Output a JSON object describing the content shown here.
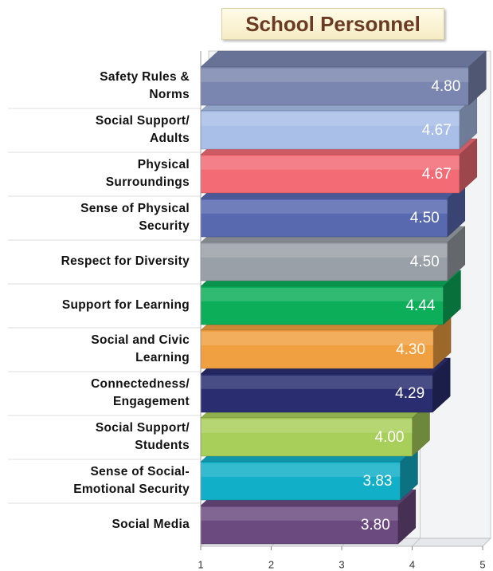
{
  "chart_data": {
    "type": "bar3d",
    "orientation": "horizontal",
    "title": "School Personnel",
    "categories": [
      "Safety Rules &\nNorms",
      "Social Support/\nAdults",
      "Physical\nSurroundings",
      "Sense of Physical\nSecurity",
      "Respect for Diversity",
      "Support for Learning",
      "Social and Civic\nLearning",
      "Connectedness/\nEngagement",
      "Social Support/\nStudents",
      "Sense of Social-\nEmotional Security",
      "Social Media"
    ],
    "values": [
      4.8,
      4.67,
      4.67,
      4.5,
      4.5,
      4.44,
      4.3,
      4.29,
      4.0,
      3.83,
      3.8
    ],
    "value_labels": [
      "4.80",
      "4.67",
      "4.67",
      "4.50",
      "4.50",
      "4.44",
      "4.30",
      "4.29",
      "4.00",
      "3.83",
      "3.80"
    ],
    "colors": [
      "#7a86b0",
      "#a9bfe8",
      "#f26b75",
      "#5869b0",
      "#9aa0a8",
      "#0cae5a",
      "#f0a040",
      "#2a2e70",
      "#a8cf5a",
      "#12afc8",
      "#6b4a80"
    ],
    "xlim": [
      1,
      5
    ],
    "xticks": [
      1,
      2,
      3,
      4,
      5
    ],
    "grid": true
  }
}
